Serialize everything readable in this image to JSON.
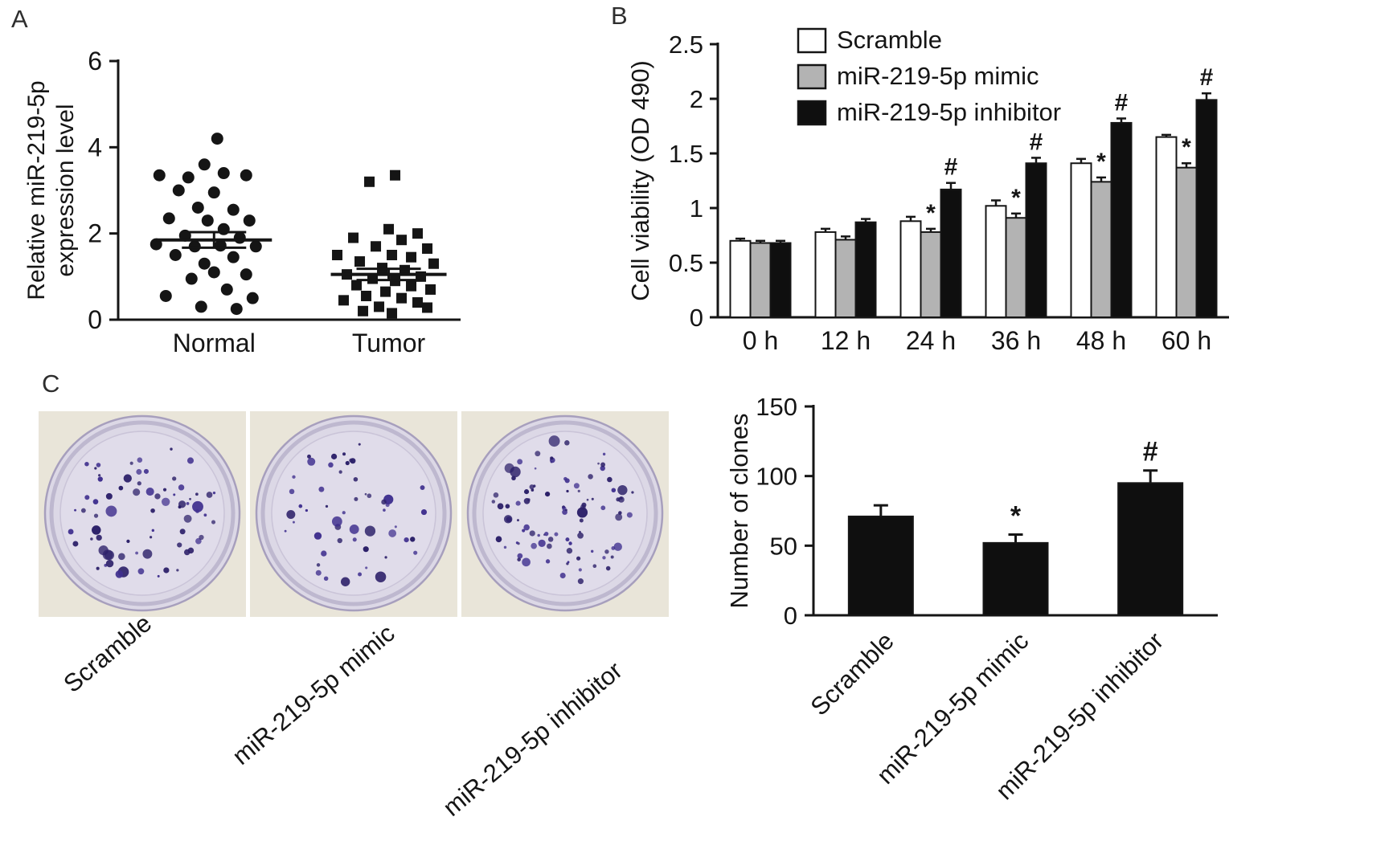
{
  "figure": {
    "panels": {
      "a": "A",
      "b": "B",
      "c": "C"
    }
  },
  "colors": {
    "ink": "#151515",
    "bar_white": "#ffffff",
    "bar_gray": "#b3b3b3",
    "bar_black": "#0f0f0f",
    "colony": "#3f2f8e",
    "colony_dark": "#2c2069",
    "dish_fill": "#dcd8e6",
    "dish_inner": "#e0dcea",
    "dish_rim": "#a79fbd",
    "photo_bg": "#e9e5d9"
  },
  "chart_data": [
    {
      "id": "expression_scatter",
      "type": "scatter",
      "title": "",
      "ylabel": "Relative miR-219-5p expression level",
      "ylabel_lines": [
        "Relative miR-219-5p",
        "expression level"
      ],
      "ylim": [
        0,
        6
      ],
      "yticks": [
        0,
        2,
        4,
        6
      ],
      "grid": false,
      "groups": [
        {
          "name": "Normal",
          "marker": "circle",
          "mean": 1.85,
          "sem": 0.18,
          "points": [
            {
              "x": 0.05,
              "y": 4.2
            },
            {
              "x": -0.15,
              "y": 3.6
            },
            {
              "x": -0.85,
              "y": 3.35
            },
            {
              "x": 0.15,
              "y": 3.4
            },
            {
              "x": 0.5,
              "y": 3.35
            },
            {
              "x": -0.4,
              "y": 3.3
            },
            {
              "x": -0.55,
              "y": 3.0
            },
            {
              "x": 0.0,
              "y": 2.95
            },
            {
              "x": -0.25,
              "y": 2.6
            },
            {
              "x": 0.3,
              "y": 2.55
            },
            {
              "x": -0.7,
              "y": 2.35
            },
            {
              "x": -0.1,
              "y": 2.3
            },
            {
              "x": 0.55,
              "y": 2.3
            },
            {
              "x": 0.15,
              "y": 2.1
            },
            {
              "x": -0.45,
              "y": 1.95
            },
            {
              "x": 0.4,
              "y": 1.9
            },
            {
              "x": -0.9,
              "y": 1.75
            },
            {
              "x": -0.3,
              "y": 1.7
            },
            {
              "x": 0.1,
              "y": 1.72
            },
            {
              "x": 0.65,
              "y": 1.7
            },
            {
              "x": -0.6,
              "y": 1.5
            },
            {
              "x": 0.3,
              "y": 1.45
            },
            {
              "x": -0.15,
              "y": 1.3
            },
            {
              "x": 0.0,
              "y": 1.1
            },
            {
              "x": 0.5,
              "y": 1.05
            },
            {
              "x": -0.35,
              "y": 0.95
            },
            {
              "x": 0.2,
              "y": 0.7
            },
            {
              "x": -0.75,
              "y": 0.55
            },
            {
              "x": 0.6,
              "y": 0.5
            },
            {
              "x": -0.2,
              "y": 0.3
            },
            {
              "x": 0.35,
              "y": 0.25
            }
          ]
        },
        {
          "name": "Tumor",
          "marker": "square",
          "mean": 1.05,
          "sem": 0.13,
          "points": [
            {
              "x": 0.1,
              "y": 3.35
            },
            {
              "x": -0.3,
              "y": 3.2
            },
            {
              "x": 0.0,
              "y": 2.1
            },
            {
              "x": 0.45,
              "y": 2.0
            },
            {
              "x": -0.55,
              "y": 1.9
            },
            {
              "x": 0.2,
              "y": 1.85
            },
            {
              "x": -0.2,
              "y": 1.7
            },
            {
              "x": 0.6,
              "y": 1.65
            },
            {
              "x": -0.8,
              "y": 1.5
            },
            {
              "x": 0.05,
              "y": 1.5
            },
            {
              "x": 0.35,
              "y": 1.45
            },
            {
              "x": -0.45,
              "y": 1.35
            },
            {
              "x": 0.7,
              "y": 1.3
            },
            {
              "x": -0.1,
              "y": 1.2
            },
            {
              "x": 0.25,
              "y": 1.15
            },
            {
              "x": -0.65,
              "y": 1.05
            },
            {
              "x": 0.5,
              "y": 1.0
            },
            {
              "x": -0.25,
              "y": 0.95
            },
            {
              "x": 0.1,
              "y": 0.9
            },
            {
              "x": -0.5,
              "y": 0.8
            },
            {
              "x": 0.35,
              "y": 0.78
            },
            {
              "x": 0.65,
              "y": 0.7
            },
            {
              "x": -0.05,
              "y": 0.65
            },
            {
              "x": -0.35,
              "y": 0.55
            },
            {
              "x": 0.2,
              "y": 0.5
            },
            {
              "x": -0.7,
              "y": 0.45
            },
            {
              "x": 0.45,
              "y": 0.4
            },
            {
              "x": -0.15,
              "y": 0.3
            },
            {
              "x": 0.6,
              "y": 0.28
            },
            {
              "x": -0.4,
              "y": 0.2
            },
            {
              "x": 0.05,
              "y": 0.15
            }
          ]
        }
      ]
    },
    {
      "id": "cell_viability",
      "type": "bar",
      "title": "",
      "ylabel": "Cell viability (OD 490)",
      "ylim": [
        0,
        2.5
      ],
      "yticks": [
        0,
        0.5,
        1,
        1.5,
        2,
        2.5
      ],
      "legend_position": "top-left-inside",
      "categories": [
        "0 h",
        "12 h",
        "24 h",
        "36 h",
        "48 h",
        "60 h"
      ],
      "series": [
        {
          "name": "Scramble",
          "fill": "#ffffff",
          "values": [
            0.7,
            0.78,
            0.88,
            1.02,
            1.41,
            1.65
          ],
          "errors": [
            0.02,
            0.03,
            0.04,
            0.05,
            0.04,
            0.02
          ],
          "annotations": [
            "",
            "",
            "",
            "",
            "",
            ""
          ]
        },
        {
          "name": "miR-219-5p mimic",
          "fill": "#b3b3b3",
          "values": [
            0.68,
            0.71,
            0.78,
            0.91,
            1.24,
            1.37
          ],
          "errors": [
            0.02,
            0.03,
            0.03,
            0.04,
            0.04,
            0.04
          ],
          "annotations": [
            "",
            "",
            "*",
            "*",
            "*",
            "*"
          ]
        },
        {
          "name": "miR-219-5p inhibitor",
          "fill": "#0f0f0f",
          "values": [
            0.68,
            0.87,
            1.17,
            1.41,
            1.78,
            1.99
          ],
          "errors": [
            0.02,
            0.03,
            0.06,
            0.05,
            0.04,
            0.06
          ],
          "annotations": [
            "",
            "",
            "#",
            "#",
            "#",
            "#"
          ]
        }
      ]
    },
    {
      "id": "number_of_clones",
      "type": "bar",
      "title": "",
      "ylabel": "Number of clones",
      "ylim": [
        0,
        150
      ],
      "yticks": [
        0,
        50,
        100,
        150
      ],
      "bar_fill": "#0f0f0f",
      "xtick_rotation": -45,
      "categories": [
        "Scramble",
        "miR-219-5p mimic",
        "miR-219-5p inhibitor"
      ],
      "values": [
        71,
        52,
        95
      ],
      "errors": [
        8,
        6,
        9
      ],
      "annotations": [
        "",
        "*",
        "#"
      ]
    }
  ],
  "panel_c": {
    "dishes": [
      {
        "label": "Scramble",
        "colonies": 71
      },
      {
        "label": "miR-219-5p mimic",
        "colonies": 52
      },
      {
        "label": "miR-219-5p inhibitor",
        "colonies": 95
      }
    ]
  }
}
